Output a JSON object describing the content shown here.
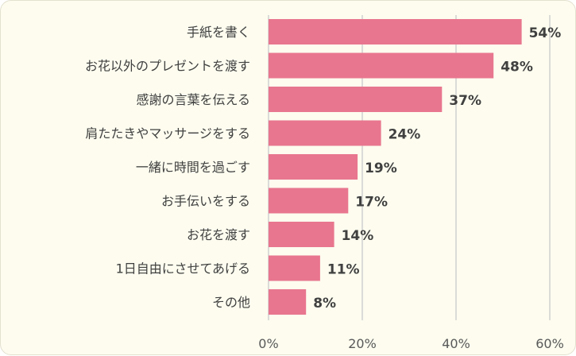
{
  "chart_data": {
    "type": "bar",
    "orientation": "horizontal",
    "categories": [
      "手紙を書く",
      "お花以外のプレゼントを渡す",
      "感謝の言葉を伝える",
      "肩たたきやマッサージをする",
      "一緒に時間を過ごす",
      "お手伝いをする",
      "お花を渡す",
      "1日自由にさせてあげる",
      "その他"
    ],
    "values": [
      54,
      48,
      37,
      24,
      19,
      17,
      14,
      11,
      8
    ],
    "value_labels": [
      "54%",
      "48%",
      "37%",
      "24%",
      "19%",
      "17%",
      "14%",
      "11%",
      "8%"
    ],
    "xlim": [
      0,
      60
    ],
    "x_ticks": [
      0,
      20,
      40,
      60
    ],
    "x_tick_labels": [
      "0%",
      "20%",
      "40%",
      "60%"
    ],
    "grid": "vertical",
    "bar_color": "#e8768e",
    "background_color": "#fdfcef",
    "title": "",
    "xlabel": "",
    "ylabel": ""
  }
}
